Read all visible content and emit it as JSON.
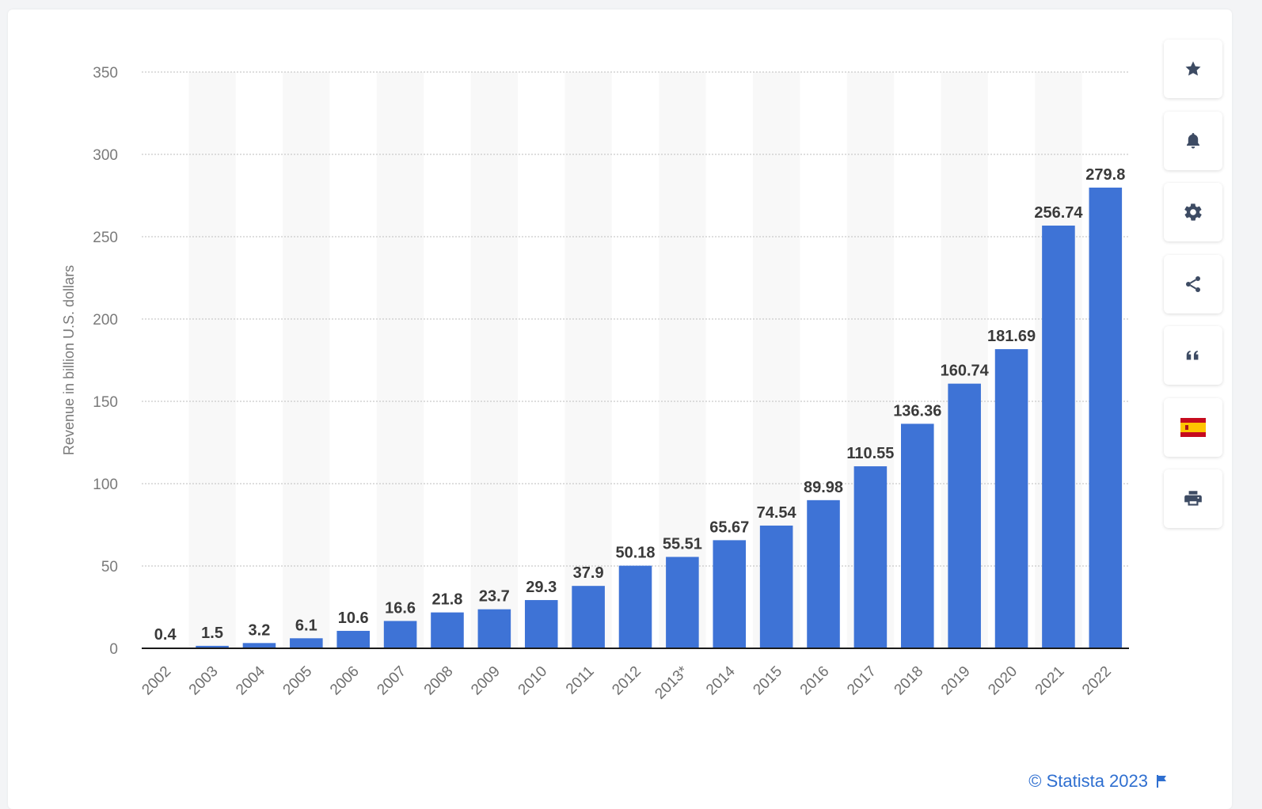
{
  "chart_data": {
    "type": "bar",
    "categories": [
      "2002",
      "2003",
      "2004",
      "2005",
      "2006",
      "2007",
      "2008",
      "2009",
      "2010",
      "2011",
      "2012",
      "2013*",
      "2014",
      "2015",
      "2016",
      "2017",
      "2018",
      "2019",
      "2020",
      "2021",
      "2022"
    ],
    "values": [
      0.4,
      1.5,
      3.2,
      6.1,
      10.6,
      16.6,
      21.8,
      23.7,
      29.3,
      37.9,
      50.18,
      55.51,
      65.67,
      74.54,
      89.98,
      110.55,
      136.36,
      160.74,
      181.69,
      256.74,
      279.8
    ],
    "value_labels": [
      "0.4",
      "1.5",
      "3.2",
      "6.1",
      "10.6",
      "16.6",
      "21.8",
      "23.7",
      "29.3",
      "37.9",
      "50.18",
      "55.51",
      "65.67",
      "74.54",
      "89.98",
      "110.55",
      "136.36",
      "160.74",
      "181.69",
      "256.74",
      "279.8"
    ],
    "title": "",
    "xlabel": "",
    "ylabel": "Revenue in billion U.S. dollars",
    "ylim": [
      0,
      350
    ],
    "yticks": [
      0,
      50,
      100,
      150,
      200,
      250,
      300,
      350
    ],
    "grid": true,
    "legend": "none",
    "bar_color": "#3e73d6",
    "alt_band_color": "#f8f8f8"
  },
  "toolbar": {
    "items": [
      {
        "name": "favorite-button",
        "icon": "star-icon"
      },
      {
        "name": "notification-button",
        "icon": "bell-icon"
      },
      {
        "name": "settings-button",
        "icon": "gear-icon"
      },
      {
        "name": "share-button",
        "icon": "share-icon"
      },
      {
        "name": "cite-button",
        "icon": "quote-icon"
      },
      {
        "name": "language-button",
        "icon": "spain-flag-icon"
      },
      {
        "name": "print-button",
        "icon": "printer-icon"
      }
    ]
  },
  "footer": {
    "credit": "© Statista 2023",
    "credit_color": "#2f6fd0"
  }
}
